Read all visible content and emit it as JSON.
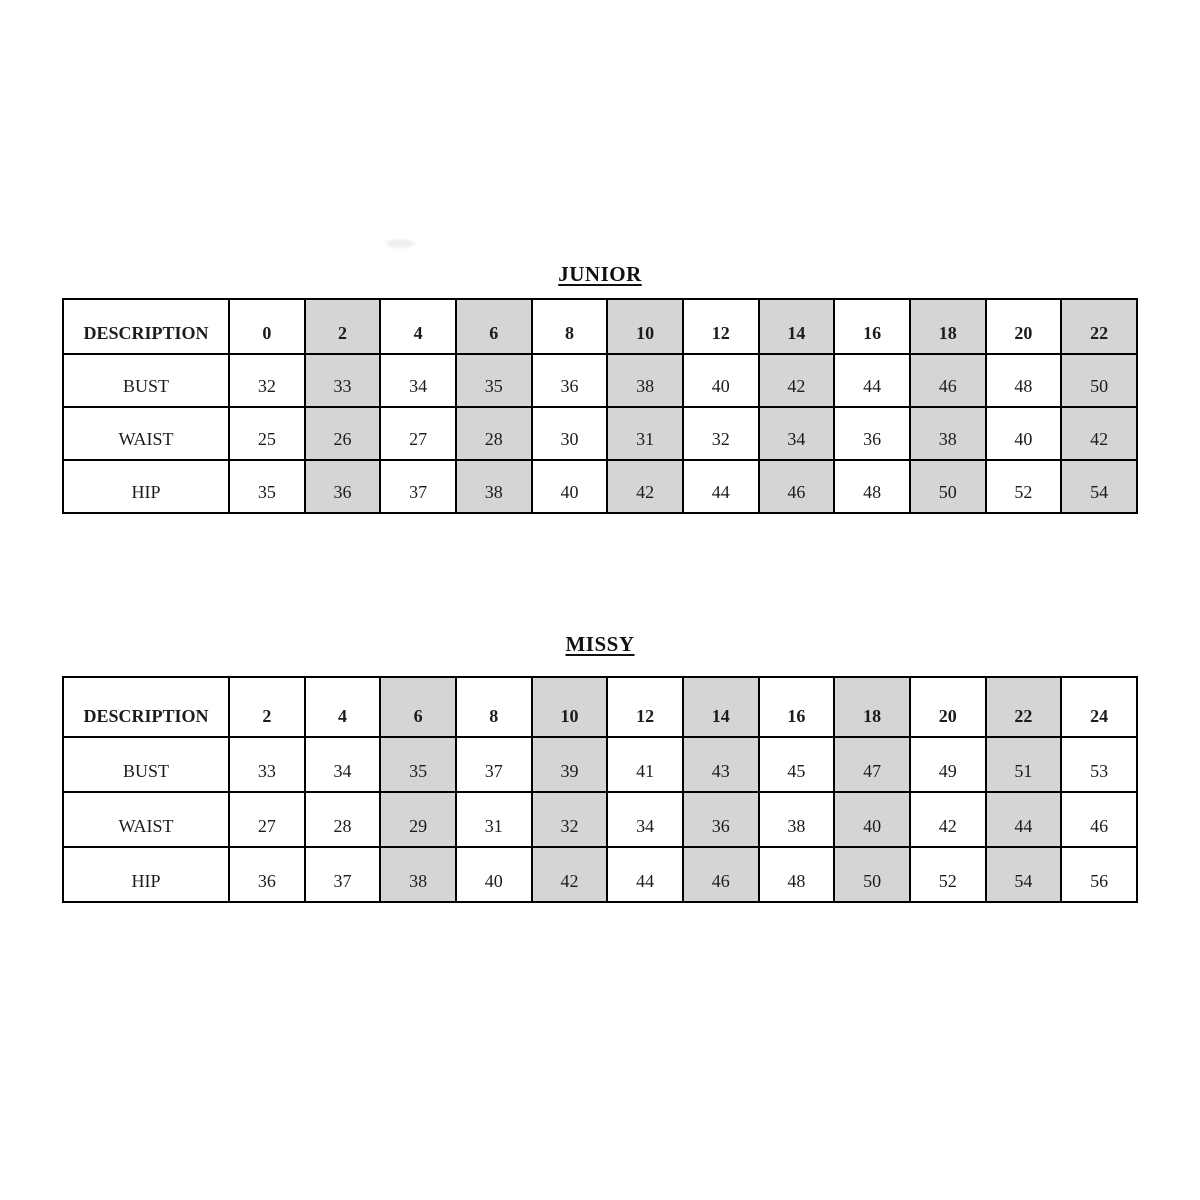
{
  "colors": {
    "page_background": "#ffffff",
    "shaded_cell": "#d5d5d5",
    "border": "#000000",
    "text": "#1c1c1c"
  },
  "tables": [
    {
      "title": "JUNIOR",
      "description_header": "DESCRIPTION",
      "sizes": [
        "0",
        "2",
        "4",
        "6",
        "8",
        "10",
        "12",
        "14",
        "16",
        "18",
        "20",
        "22"
      ],
      "shaded_columns": [
        false,
        true,
        false,
        true,
        false,
        true,
        false,
        true,
        false,
        true,
        false,
        true
      ],
      "rows": [
        {
          "label": "BUST",
          "values": [
            "32",
            "33",
            "34",
            "35",
            "36",
            "38",
            "40",
            "42",
            "44",
            "46",
            "48",
            "50"
          ]
        },
        {
          "label": "WAIST",
          "values": [
            "25",
            "26",
            "27",
            "28",
            "30",
            "31",
            "32",
            "34",
            "36",
            "38",
            "40",
            "42"
          ]
        },
        {
          "label": "HIP",
          "values": [
            "35",
            "36",
            "37",
            "38",
            "40",
            "42",
            "44",
            "46",
            "48",
            "50",
            "52",
            "54"
          ]
        }
      ]
    },
    {
      "title": "MISSY",
      "description_header": "DESCRIPTION",
      "sizes": [
        "2",
        "4",
        "6",
        "8",
        "10",
        "12",
        "14",
        "16",
        "18",
        "20",
        "22",
        "24"
      ],
      "shaded_columns": [
        false,
        false,
        true,
        false,
        true,
        false,
        true,
        false,
        true,
        false,
        true,
        false
      ],
      "rows": [
        {
          "label": "BUST",
          "values": [
            "33",
            "34",
            "35",
            "37",
            "39",
            "41",
            "43",
            "45",
            "47",
            "49",
            "51",
            "53"
          ]
        },
        {
          "label": "WAIST",
          "values": [
            "27",
            "28",
            "29",
            "31",
            "32",
            "34",
            "36",
            "38",
            "40",
            "42",
            "44",
            "46"
          ]
        },
        {
          "label": "HIP",
          "values": [
            "36",
            "37",
            "38",
            "40",
            "42",
            "44",
            "46",
            "48",
            "50",
            "52",
            "54",
            "56"
          ]
        }
      ]
    }
  ]
}
